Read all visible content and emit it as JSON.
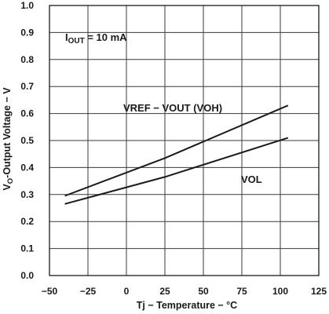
{
  "chart_data": {
    "type": "line",
    "title": "",
    "xlabel": "Tj − Temperature − °C",
    "ylabel_parts": [
      "V",
      "O",
      "-Output Voltage − V"
    ],
    "xlim": [
      -50,
      125
    ],
    "ylim": [
      0.0,
      1.0
    ],
    "x_ticks": [
      -50,
      -25,
      0,
      25,
      50,
      75,
      100,
      125
    ],
    "x_tick_labels": [
      "−50",
      "−25",
      "0",
      "25",
      "50",
      "75",
      "100",
      "125"
    ],
    "y_ticks": [
      0.0,
      0.1,
      0.2,
      0.3,
      0.4,
      0.5,
      0.6,
      0.7,
      0.8,
      0.9,
      1.0
    ],
    "y_tick_labels": [
      "0.0",
      "0.1",
      "0.2",
      "0.3",
      "0.4",
      "0.5",
      "0.6",
      "0.7",
      "0.8",
      "0.9",
      "1.0"
    ],
    "grid": true,
    "condition_parts": [
      "I",
      "OUT",
      " = 10 mA"
    ],
    "series": [
      {
        "name": "VREF − VOUT (VOH)",
        "x": [
          -40,
          25,
          105
        ],
        "y": [
          0.295,
          0.435,
          0.63
        ]
      },
      {
        "name": "VOL",
        "x": [
          -40,
          25,
          105
        ],
        "y": [
          0.265,
          0.365,
          0.51
        ]
      }
    ],
    "colors": {
      "line": "#1a1a1a",
      "grid": "#3a3a3a",
      "background": "#ffffff"
    }
  }
}
